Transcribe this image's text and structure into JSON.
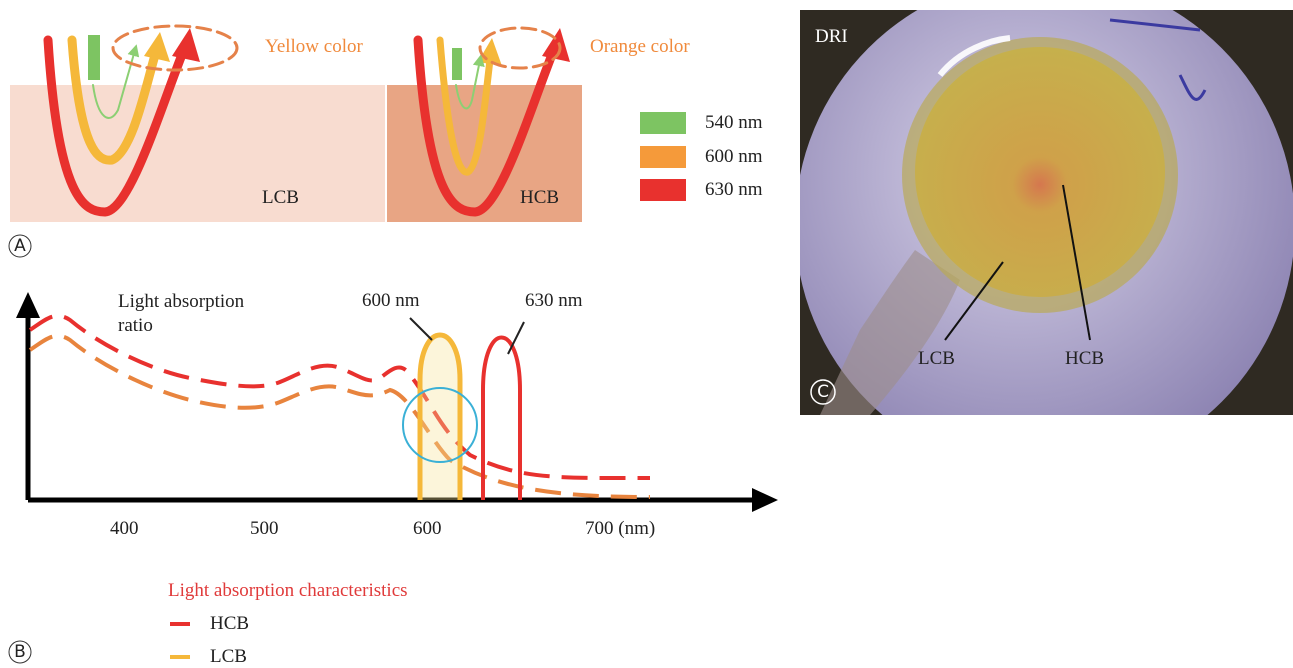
{
  "panel_a": {
    "label": "A",
    "annotations": [
      "Yellow color",
      "Orange color"
    ],
    "boxes": [
      "LCB",
      "HCB"
    ],
    "legend": [
      "540 nm",
      "600 nm",
      "630 nm"
    ]
  },
  "panel_b": {
    "label": "B",
    "y_label": "Light absorption ratio",
    "peak_labels": [
      "600 nm",
      "630 nm"
    ],
    "x_labels": [
      "400",
      "500",
      "600",
      "700 (nm)"
    ],
    "legend_title": "Light absorption characteristics",
    "legend": [
      "HCB",
      "LCB"
    ]
  },
  "panel_c": {
    "label": "C",
    "title": "DRI",
    "labels": [
      "LCB",
      "HCB"
    ]
  }
}
